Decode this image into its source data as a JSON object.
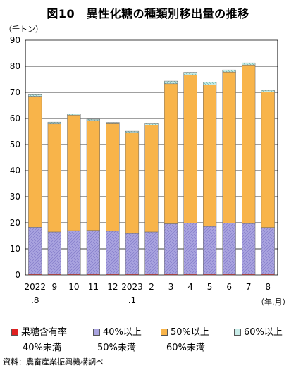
{
  "title": "図10　異性化糖の種類別移出量の推移",
  "source": "資料：農畜産業振興機構調べ",
  "chart_data": {
    "type": "bar",
    "stacked": true,
    "ylabel": "（千トン）",
    "xunit": "（年.月）",
    "ylim": [
      0,
      90
    ],
    "yticks": [
      0,
      10,
      20,
      30,
      40,
      50,
      60,
      70,
      80,
      90
    ],
    "categories": [
      "2022.8",
      "9",
      "10",
      "11",
      "12",
      "2023.1",
      "2",
      "3",
      "4",
      "5",
      "6",
      "7",
      "8"
    ],
    "category_lines": [
      [
        "2022",
        ".8"
      ],
      [
        "9"
      ],
      [
        "10"
      ],
      [
        "11"
      ],
      [
        "12"
      ],
      [
        "2023",
        ".1"
      ],
      [
        "2"
      ],
      [
        "3"
      ],
      [
        "4"
      ],
      [
        "5"
      ],
      [
        "6"
      ],
      [
        "7"
      ],
      [
        "8"
      ]
    ],
    "series": [
      {
        "name": "果糖含有率40%未満",
        "legend_lines": [
          "果糖含有率",
          "40%未満"
        ],
        "color": "#e02020",
        "values": [
          0.3,
          0.3,
          0.3,
          0.3,
          0.3,
          0.3,
          0.3,
          0.3,
          0.3,
          0.3,
          0.3,
          0.3,
          0.3
        ]
      },
      {
        "name": "40%以上50%未満",
        "legend_lines": [
          "40%以上",
          "50%未満"
        ],
        "color": "#a9a3df",
        "values": [
          18.0,
          16.2,
          16.7,
          16.8,
          16.5,
          15.6,
          16.2,
          19.3,
          19.6,
          18.3,
          19.6,
          19.4,
          17.9
        ]
      },
      {
        "name": "50%以上60%未満",
        "legend_lines": [
          "50%以上",
          "60%未満"
        ],
        "color": "#f8b44a",
        "values": [
          50.2,
          41.4,
          44.3,
          42.1,
          41.2,
          38.7,
          41.0,
          53.7,
          56.8,
          54.3,
          57.9,
          60.8,
          51.9
        ]
      },
      {
        "name": "60%以上",
        "legend_lines": [
          "60%以上"
        ],
        "color": "#c8ece8",
        "values": [
          0.6,
          0.7,
          0.5,
          0.5,
          0.5,
          0.5,
          0.5,
          1.0,
          1.0,
          1.0,
          0.8,
          0.8,
          0.7
        ]
      }
    ]
  }
}
